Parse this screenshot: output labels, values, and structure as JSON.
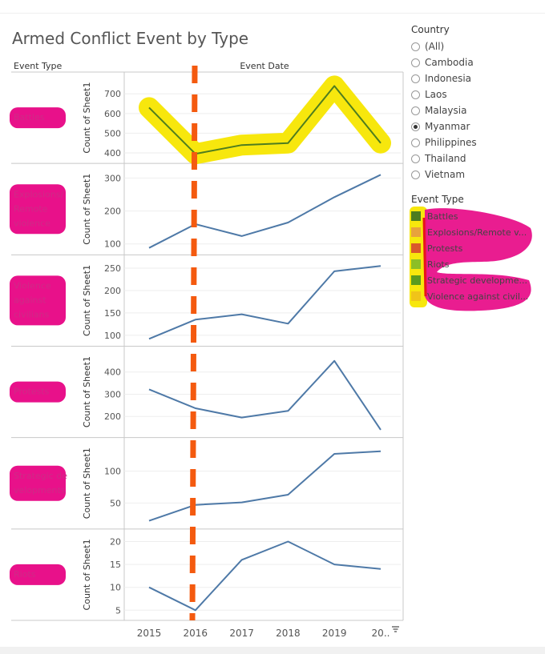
{
  "title": "Armed Conflict Event by Type",
  "row_header": "Event Type",
  "col_header": "Event Date",
  "country_filter": {
    "title": "Country",
    "options": [
      "(All)",
      "Cambodia",
      "Indonesia",
      "Laos",
      "Malaysia",
      "Myanmar",
      "Philippines",
      "Thailand",
      "Vietnam"
    ],
    "selected": "Myanmar"
  },
  "legend": {
    "title": "Event Type",
    "items": [
      {
        "label": "Battles",
        "color": "#4e7d1f"
      },
      {
        "label": "Explosions/Remote v...",
        "color": "#e8a33c"
      },
      {
        "label": "Protests",
        "color": "#d9582b"
      },
      {
        "label": "Riots",
        "color": "#8cbf26"
      },
      {
        "label": "Strategic developme...",
        "color": "#5a9a1e"
      },
      {
        "label": "Violence against civil...",
        "color": "#f0c419"
      }
    ]
  },
  "colors": {
    "line": "#4e79a7",
    "battles_line": "#4e7d1f",
    "highlight_yellow": "#f7e600",
    "highlight_pink": "#e8118a",
    "dash_orange": "#f45a0f"
  },
  "chart_data": {
    "type": "line",
    "x": [
      "2015",
      "2016",
      "2017",
      "2018",
      "2019",
      "20.."
    ],
    "ylabel": "Count of Sheet1",
    "xlabel": "",
    "series": [
      {
        "name": "Battles",
        "values": [
          630,
          395,
          440,
          450,
          740,
          450
        ],
        "yticks": [
          400,
          500,
          600,
          700
        ],
        "ylim": [
          375,
          770
        ]
      },
      {
        "name": "Explosions/ Remote violence",
        "values": [
          88,
          160,
          124,
          165,
          242,
          310
        ],
        "yticks": [
          100,
          200,
          300
        ],
        "ylim": [
          84,
          320
        ]
      },
      {
        "name": "Violence against civilians",
        "values": [
          92,
          135,
          147,
          126,
          243,
          255
        ],
        "yticks": [
          100,
          150,
          200,
          250
        ],
        "ylim": [
          88,
          262
        ]
      },
      {
        "name": "Protests",
        "values": [
          322,
          237,
          195,
          225,
          450,
          140
        ],
        "yticks": [
          200,
          300,
          400
        ],
        "ylim": [
          130,
          480
        ]
      },
      {
        "name": "Strategic de velopments",
        "values": [
          22,
          47,
          51,
          63,
          127,
          131
        ],
        "yticks": [
          50,
          100
        ],
        "ylim": [
          18,
          140
        ]
      },
      {
        "name": "Riots",
        "values": [
          10,
          5,
          16,
          20,
          15,
          14
        ],
        "yticks": [
          5,
          10,
          15,
          20
        ],
        "ylim": [
          4,
          21
        ]
      }
    ]
  }
}
